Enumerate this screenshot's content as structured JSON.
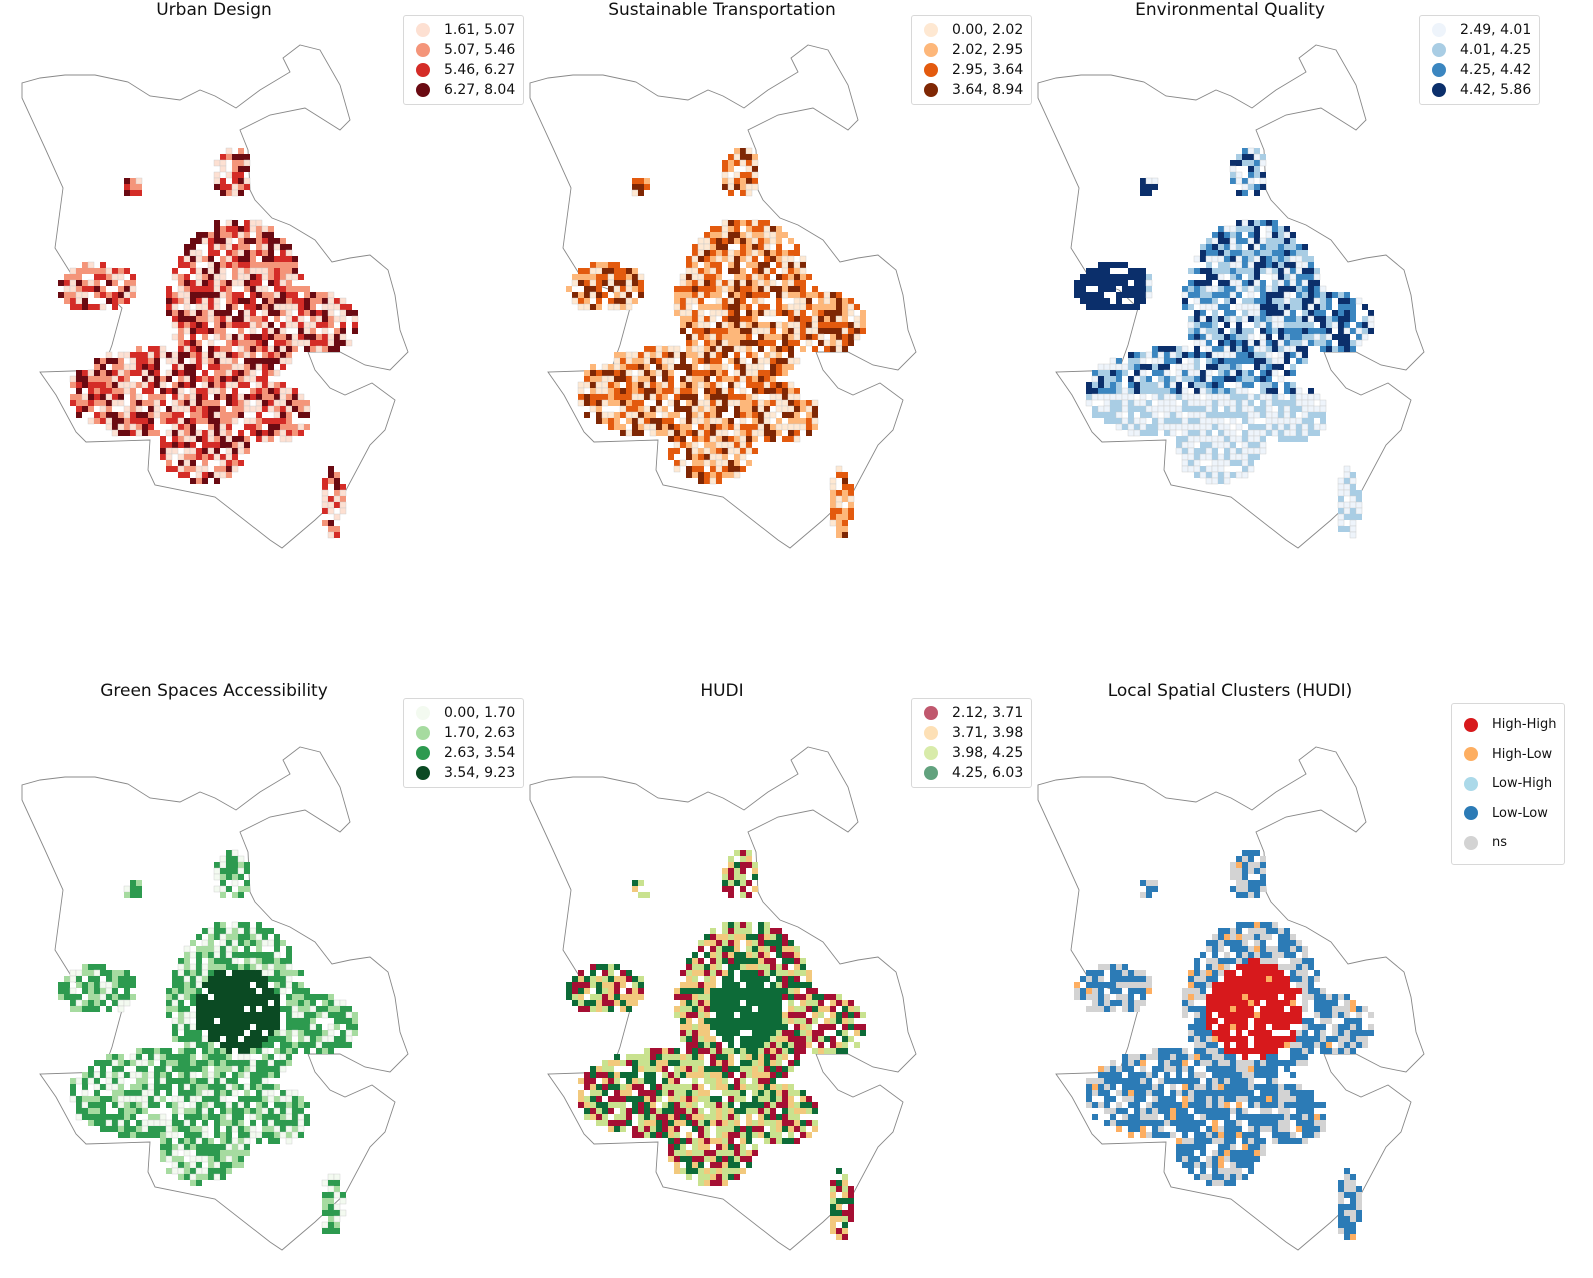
{
  "panels": [
    {
      "title": "Urban Design",
      "colors": [
        "#fde0d2",
        "#f4957a",
        "#d42c27",
        "#6a0a12"
      ],
      "legend": [
        {
          "label": "1.61, 5.07",
          "color": "#fde0d2"
        },
        {
          "label": "5.07, 5.46",
          "color": "#f4957a"
        },
        {
          "label": "5.46, 6.27",
          "color": "#d42c27"
        },
        {
          "label": "6.27, 8.04",
          "color": "#6a0a12"
        }
      ]
    },
    {
      "title": "Sustainable Transportation",
      "colors": [
        "#fee8d2",
        "#fdb77a",
        "#e35a0e",
        "#7f2704"
      ],
      "legend": [
        {
          "label": "0.00, 2.02",
          "color": "#fee8d2"
        },
        {
          "label": "2.02, 2.95",
          "color": "#fdb77a"
        },
        {
          "label": "2.95, 3.64",
          "color": "#e35a0e"
        },
        {
          "label": "3.64, 8.94",
          "color": "#7f2704"
        }
      ]
    },
    {
      "title": "Environmental Quality",
      "colors": [
        "#eef4fb",
        "#a9cde4",
        "#3b86c0",
        "#0b2f6b"
      ],
      "legend": [
        {
          "label": "2.49, 4.01",
          "color": "#eef4fb"
        },
        {
          "label": "4.01, 4.25",
          "color": "#a9cde4"
        },
        {
          "label": "4.25, 4.42",
          "color": "#3b86c0"
        },
        {
          "label": "4.42, 5.86",
          "color": "#0b2f6b"
        }
      ]
    },
    {
      "title": "Green Spaces Accessibility",
      "colors": [
        "#f3faf0",
        "#a6dba0",
        "#2d9a4f",
        "#0b4a23"
      ],
      "legend": [
        {
          "label": "0.00, 1.70",
          "color": "#f3faf0"
        },
        {
          "label": "1.70, 2.63",
          "color": "#a6dba0"
        },
        {
          "label": "2.63, 3.54",
          "color": "#2d9a4f"
        },
        {
          "label": "3.54, 9.23",
          "color": "#0b4a23"
        }
      ]
    },
    {
      "title": "HUDI",
      "colors": [
        "#a50f33",
        "#f2c97d",
        "#c9e28f",
        "#0d6b38"
      ],
      "legend": [
        {
          "label": "2.12, 3.71",
          "color": "#c0586e"
        },
        {
          "label": "3.71, 3.98",
          "color": "#fde0b6"
        },
        {
          "label": "3.98, 4.25",
          "color": "#d8ebaa"
        },
        {
          "label": "4.25, 6.03",
          "color": "#62a27e"
        }
      ]
    },
    {
      "title": "Local Spatial Clusters (HUDI)",
      "colors": [
        "#d7191c",
        "#fdae61",
        "#abd9e9",
        "#2c7bb6",
        "#d3d3d3"
      ],
      "legend": [
        {
          "label": "High-High",
          "color": "#d7191c"
        },
        {
          "label": "High-Low",
          "color": "#fdae61"
        },
        {
          "label": "Low-High",
          "color": "#abd9e9"
        },
        {
          "label": "Low-Low",
          "color": "#2c7bb6"
        },
        {
          "label": "ns",
          "color": "#d3d3d3"
        }
      ]
    }
  ]
}
